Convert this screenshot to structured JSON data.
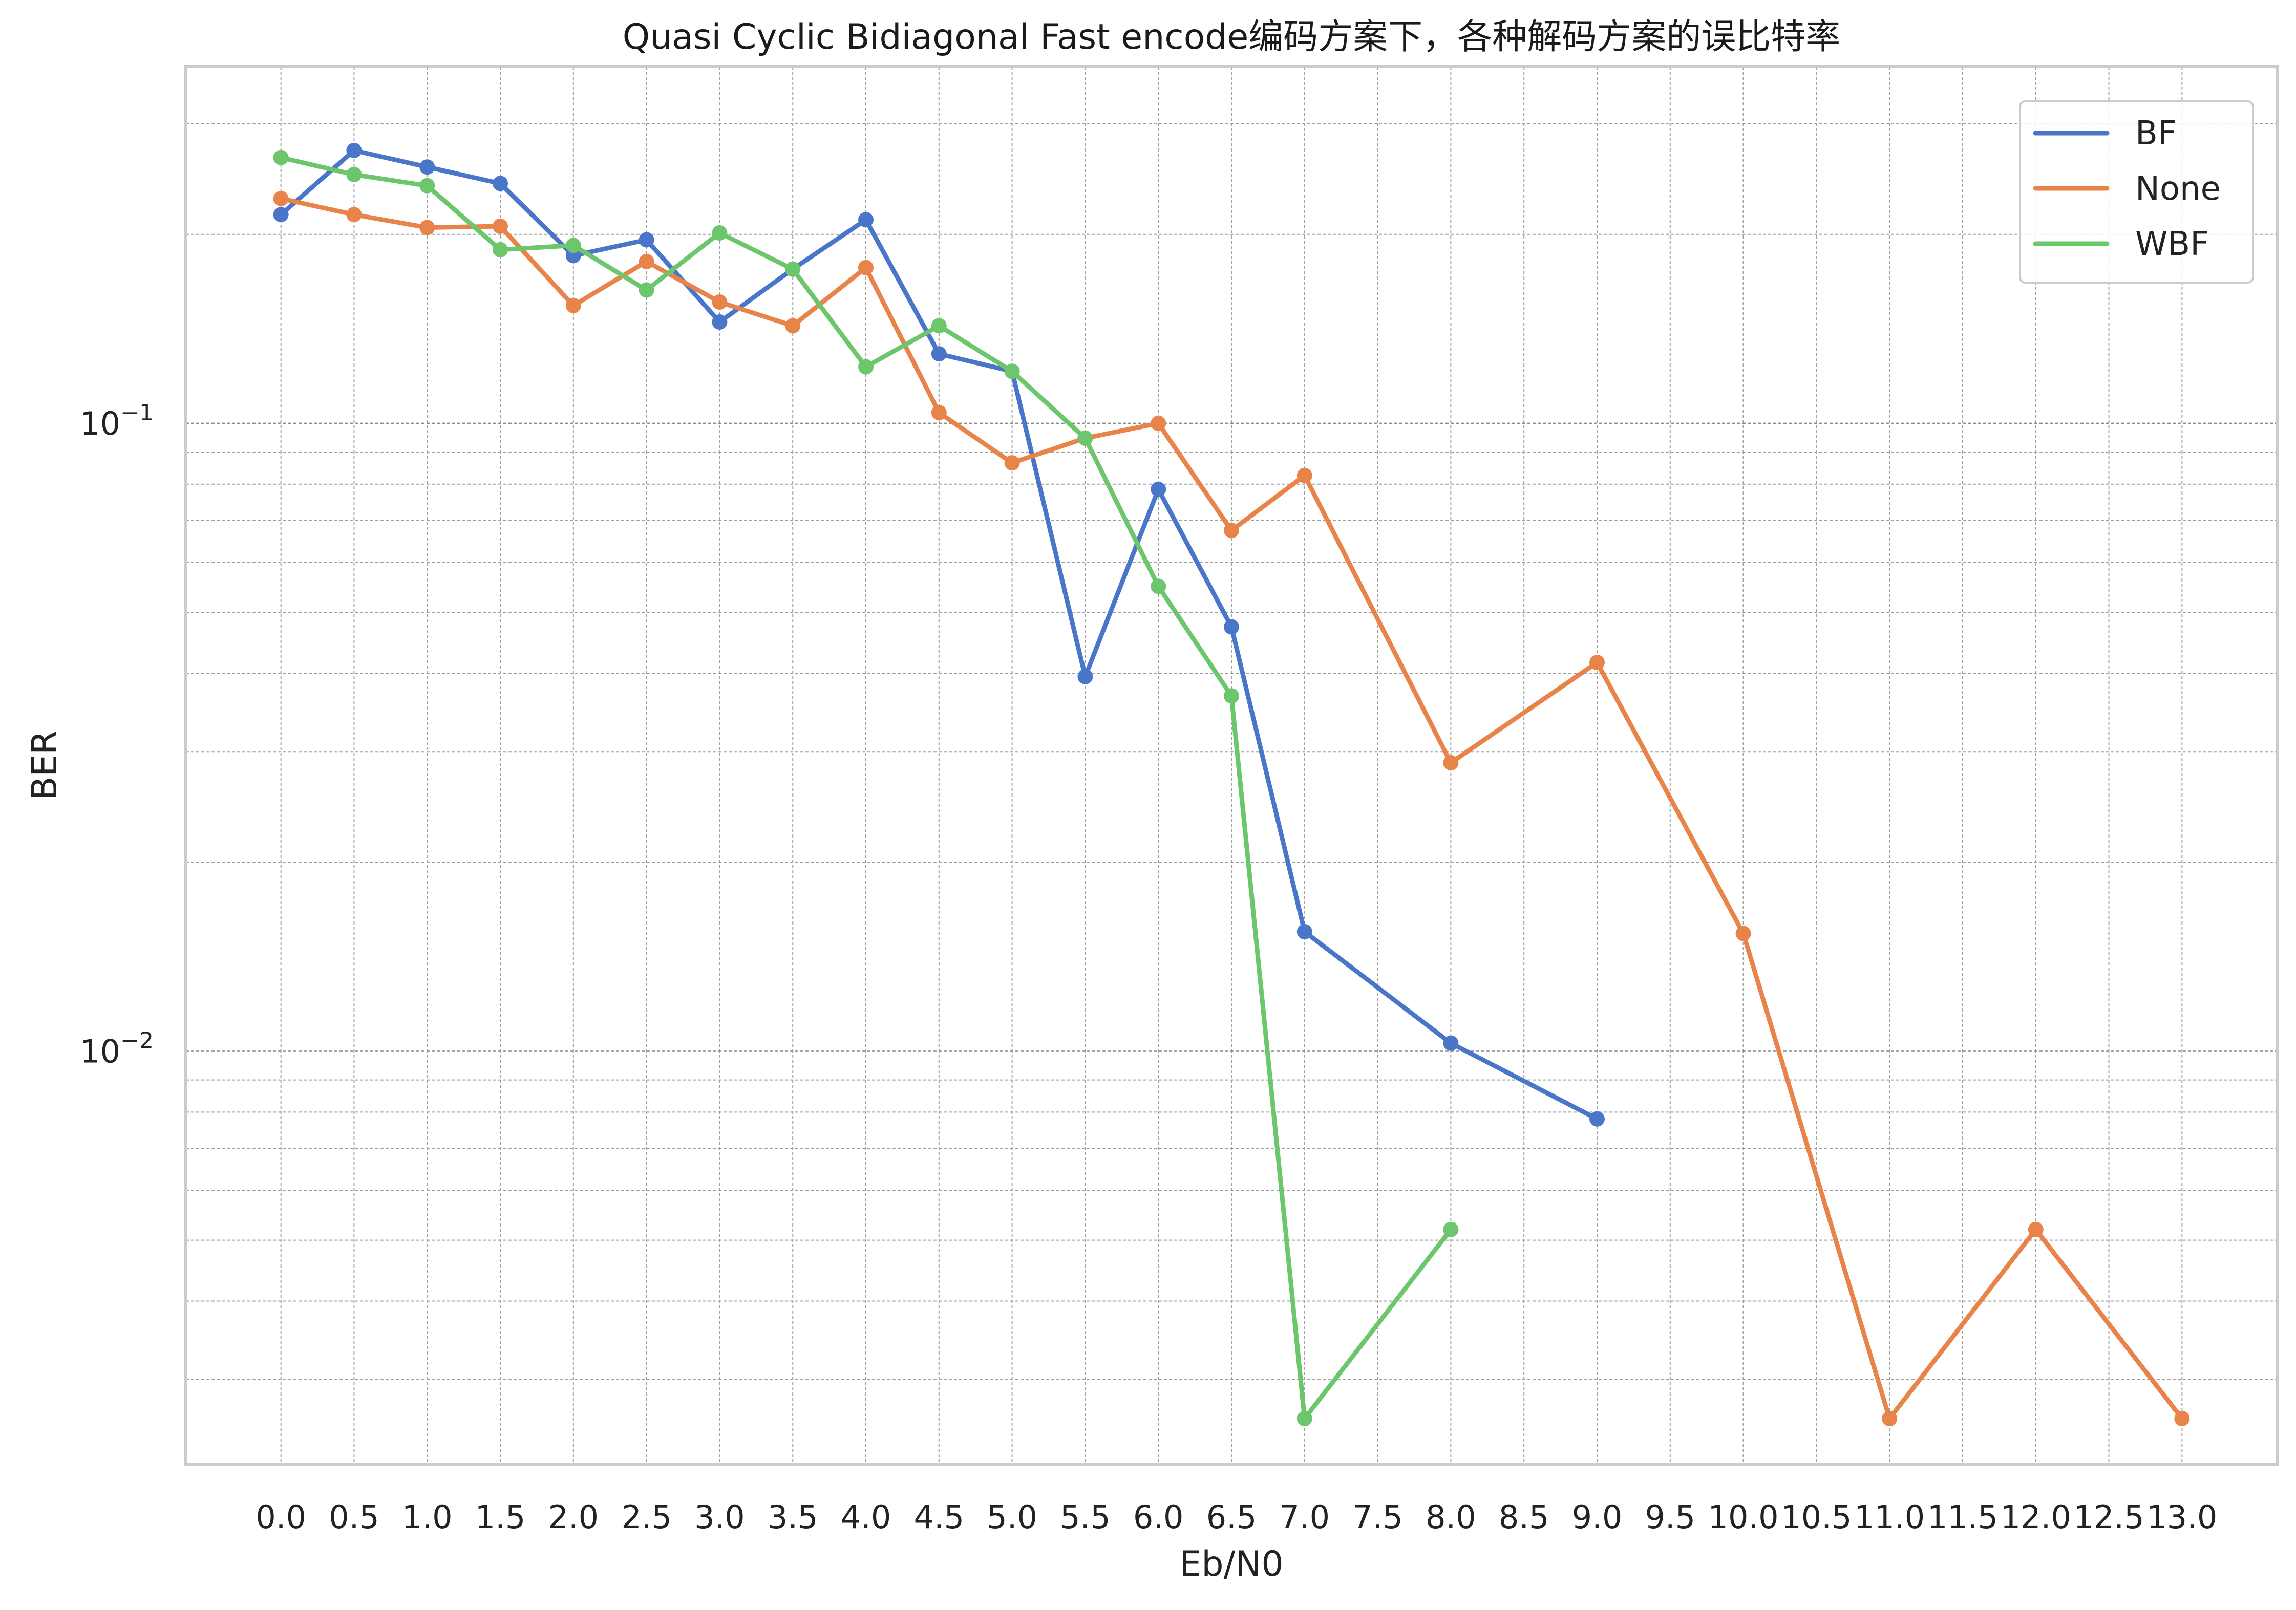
{
  "chart_data": {
    "type": "line",
    "title": "Quasi Cyclic Bidiagonal Fast encode编码方案下，各种解码方案的误比特率",
    "xlabel": "Eb/N0",
    "ylabel": "BER",
    "yscale": "log",
    "ylim": [
      0.0022,
      0.37
    ],
    "xlim": [
      -0.65,
      13.65
    ],
    "x_ticks": [
      "0.0",
      "0.5",
      "1.0",
      "1.5",
      "2.0",
      "2.5",
      "3.0",
      "3.5",
      "4.0",
      "4.5",
      "5.0",
      "5.5",
      "6.0",
      "6.5",
      "7.0",
      "7.5",
      "8.0",
      "8.5",
      "9.0",
      "9.5",
      "10.0",
      "10.5",
      "11.0",
      "11.5",
      "12.0",
      "12.5",
      "13.0"
    ],
    "y_major_ticks": [
      {
        "value": 0.1,
        "base": "10",
        "exp": "−1"
      },
      {
        "value": 0.01,
        "base": "10",
        "exp": "−2"
      }
    ],
    "grid": true,
    "legend_position": "top-right",
    "series": [
      {
        "name": "BF",
        "color": "#4a76c9",
        "x": [
          0.0,
          0.5,
          1.0,
          1.5,
          2.0,
          2.5,
          3.0,
          3.5,
          4.0,
          4.5,
          5.0,
          5.5,
          6.0,
          6.5,
          7.0,
          8.0,
          9.0
        ],
        "y": [
          0.215,
          0.272,
          0.256,
          0.241,
          0.185,
          0.196,
          0.145,
          0.176,
          0.211,
          0.129,
          0.121,
          0.0395,
          0.0785,
          0.0474,
          0.0155,
          0.0103,
          0.0078
        ]
      },
      {
        "name": "None",
        "color": "#e8844a",
        "x": [
          0.0,
          0.5,
          1.0,
          1.5,
          2.0,
          2.5,
          3.0,
          3.5,
          4.0,
          4.5,
          5.0,
          5.5,
          6.0,
          6.5,
          7.0,
          8.0,
          9.0,
          10.0,
          11.0,
          12.0,
          13.0
        ],
        "y": [
          0.228,
          0.215,
          0.205,
          0.206,
          0.154,
          0.181,
          0.156,
          0.143,
          0.177,
          0.104,
          0.0865,
          0.0947,
          0.1,
          0.0675,
          0.0826,
          0.0288,
          0.0416,
          0.0154,
          0.0026,
          0.0052,
          0.0026
        ]
      },
      {
        "name": "WBF",
        "color": "#6cc66c",
        "x": [
          0.0,
          0.5,
          1.0,
          1.5,
          2.0,
          2.5,
          3.0,
          3.5,
          4.0,
          4.5,
          5.0,
          5.5,
          6.0,
          6.5,
          7.0,
          8.0
        ],
        "y": [
          0.265,
          0.249,
          0.239,
          0.189,
          0.192,
          0.163,
          0.201,
          0.176,
          0.123,
          0.143,
          0.121,
          0.0947,
          0.055,
          0.0368,
          0.0026,
          0.0052
        ]
      }
    ]
  }
}
